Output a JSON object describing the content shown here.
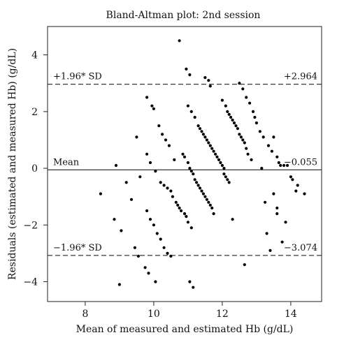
{
  "chart_data": {
    "type": "scatter",
    "title": "Bland-Altman plot: 2nd session",
    "xlabel": "Mean of measured and estimated Hb (g/dL)",
    "ylabel": "Residuals (estimated and measured Hb) (g/dL)",
    "xlim": [
      6.9,
      14.9
    ],
    "ylim": [
      -4.7,
      5.0
    ],
    "xticks": [
      8,
      10,
      12,
      14
    ],
    "yticks": [
      -4,
      -2,
      0,
      2,
      4
    ],
    "grid": false,
    "reference_lines": [
      {
        "name": "upper",
        "value": 2.964,
        "style": "dashed",
        "left_label": "+1.96* SD",
        "right_label": "+2.964"
      },
      {
        "name": "mean",
        "value": -0.055,
        "style": "solid",
        "left_label": "Mean",
        "right_label": "−0.055"
      },
      {
        "name": "lower",
        "value": -3.074,
        "style": "dashed",
        "left_label": "−1.96* SD",
        "right_label": "−3.074"
      }
    ],
    "points": [
      [
        8.45,
        -0.9
      ],
      [
        8.85,
        -1.8
      ],
      [
        8.9,
        0.1
      ],
      [
        9.0,
        -4.1
      ],
      [
        9.05,
        -2.2
      ],
      [
        9.2,
        -0.5
      ],
      [
        9.35,
        -1.1
      ],
      [
        9.45,
        -2.8
      ],
      [
        9.5,
        1.1
      ],
      [
        9.55,
        -3.1
      ],
      [
        9.6,
        -0.3
      ],
      [
        9.75,
        -3.5
      ],
      [
        9.8,
        -1.5
      ],
      [
        9.8,
        0.5
      ],
      [
        9.8,
        2.5
      ],
      [
        9.85,
        -3.7
      ],
      [
        9.9,
        -1.8
      ],
      [
        9.9,
        0.2
      ],
      [
        9.95,
        2.2
      ],
      [
        10.0,
        -2.0
      ],
      [
        10.0,
        2.1
      ],
      [
        10.05,
        -0.1
      ],
      [
        10.05,
        -4.0
      ],
      [
        10.1,
        -2.3
      ],
      [
        10.15,
        1.5
      ],
      [
        10.2,
        -2.5
      ],
      [
        10.2,
        -0.5
      ],
      [
        10.25,
        1.2
      ],
      [
        10.3,
        -2.8
      ],
      [
        10.3,
        -0.6
      ],
      [
        10.35,
        1.0
      ],
      [
        10.4,
        -3.0
      ],
      [
        10.4,
        -0.7
      ],
      [
        10.45,
        0.8
      ],
      [
        10.5,
        -3.1
      ],
      [
        10.5,
        -0.8
      ],
      [
        10.55,
        -1.0
      ],
      [
        10.6,
        0.3
      ],
      [
        10.65,
        -1.2
      ],
      [
        10.7,
        -1.3
      ],
      [
        10.75,
        4.5
      ],
      [
        10.75,
        -1.4
      ],
      [
        10.8,
        -1.5
      ],
      [
        10.85,
        0.5
      ],
      [
        10.9,
        0.4
      ],
      [
        10.9,
        -1.6
      ],
      [
        10.95,
        -1.7
      ],
      [
        10.95,
        3.5
      ],
      [
        11.0,
        0.2
      ],
      [
        11.0,
        2.2
      ],
      [
        11.0,
        -1.9
      ],
      [
        11.05,
        0.0
      ],
      [
        11.05,
        3.3
      ],
      [
        11.1,
        2.0
      ],
      [
        11.1,
        -2.1
      ],
      [
        11.05,
        -4.0
      ],
      [
        11.1,
        -0.1
      ],
      [
        11.15,
        -0.2
      ],
      [
        11.15,
        -4.2
      ],
      [
        11.2,
        -0.4
      ],
      [
        11.2,
        1.8
      ],
      [
        11.25,
        -0.5
      ],
      [
        11.3,
        -0.6
      ],
      [
        11.3,
        1.5
      ],
      [
        11.35,
        -0.7
      ],
      [
        11.35,
        1.4
      ],
      [
        11.4,
        -0.8
      ],
      [
        11.4,
        1.3
      ],
      [
        11.45,
        -0.9
      ],
      [
        11.45,
        1.2
      ],
      [
        11.5,
        -1.0
      ],
      [
        11.5,
        1.1
      ],
      [
        11.5,
        3.2
      ],
      [
        11.55,
        -1.1
      ],
      [
        11.55,
        1.0
      ],
      [
        11.6,
        -1.2
      ],
      [
        11.6,
        0.9
      ],
      [
        11.6,
        3.1
      ],
      [
        11.65,
        -1.3
      ],
      [
        11.65,
        0.8
      ],
      [
        11.65,
        2.9
      ],
      [
        11.7,
        -1.4
      ],
      [
        11.7,
        0.7
      ],
      [
        11.75,
        -1.6
      ],
      [
        11.75,
        0.6
      ],
      [
        11.8,
        0.5
      ],
      [
        11.85,
        0.4
      ],
      [
        11.9,
        0.3
      ],
      [
        11.95,
        0.2
      ],
      [
        12.0,
        0.1
      ],
      [
        12.0,
        2.4
      ],
      [
        12.05,
        0.0
      ],
      [
        12.05,
        -0.2
      ],
      [
        12.1,
        -0.3
      ],
      [
        12.1,
        2.2
      ],
      [
        12.15,
        -0.4
      ],
      [
        12.15,
        2.0
      ],
      [
        12.2,
        -0.5
      ],
      [
        12.2,
        1.9
      ],
      [
        12.25,
        1.8
      ],
      [
        12.3,
        -1.8
      ],
      [
        12.3,
        1.7
      ],
      [
        12.35,
        1.6
      ],
      [
        12.4,
        1.5
      ],
      [
        12.45,
        1.4
      ],
      [
        12.5,
        1.2
      ],
      [
        12.5,
        3.0
      ],
      [
        12.55,
        1.1
      ],
      [
        12.6,
        2.8
      ],
      [
        12.6,
        1.0
      ],
      [
        12.65,
        0.9
      ],
      [
        12.65,
        -3.4
      ],
      [
        12.7,
        2.5
      ],
      [
        12.7,
        0.7
      ],
      [
        12.75,
        0.5
      ],
      [
        12.8,
        2.3
      ],
      [
        12.85,
        0.3
      ],
      [
        12.9,
        2.0
      ],
      [
        12.95,
        1.8
      ],
      [
        13.0,
        1.6
      ],
      [
        13.1,
        1.3
      ],
      [
        13.15,
        0.0
      ],
      [
        13.2,
        1.1
      ],
      [
        13.25,
        -1.2
      ],
      [
        13.3,
        -2.3
      ],
      [
        13.35,
        0.8
      ],
      [
        13.4,
        -2.9
      ],
      [
        13.45,
        0.6
      ],
      [
        13.5,
        -0.9
      ],
      [
        13.5,
        1.1
      ],
      [
        13.6,
        0.4
      ],
      [
        13.6,
        -1.4
      ],
      [
        13.6,
        -1.6
      ],
      [
        13.65,
        0.2
      ],
      [
        13.7,
        0.1
      ],
      [
        13.75,
        -2.6
      ],
      [
        13.8,
        0.1
      ],
      [
        13.85,
        -1.9
      ],
      [
        13.9,
        0.1
      ],
      [
        14.0,
        -0.3
      ],
      [
        14.05,
        -0.4
      ],
      [
        14.15,
        -0.8
      ],
      [
        14.2,
        -0.6
      ],
      [
        14.4,
        -0.9
      ]
    ]
  }
}
